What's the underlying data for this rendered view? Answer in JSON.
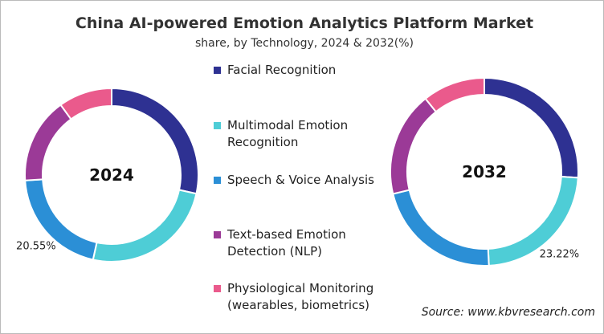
{
  "header": {
    "title": "China AI-powered Emotion Analytics Platform Market",
    "subtitle": "share, by Technology, 2024 & 2032(%)",
    "source": "Source: www.kbvresearch.com"
  },
  "chart_data": [
    {
      "type": "donut",
      "title": "2024",
      "categories": [
        "Facial Recognition",
        "Multimodal Emotion Recognition",
        "Speech & Voice Analysis",
        "Text-based Emotion Detection (NLP)",
        "Physiological Monitoring (wearables, biometrics)"
      ],
      "colors": [
        "#2e3192",
        "#4ecdd6",
        "#2b8fd6",
        "#9b3a97",
        "#ea5a8c"
      ],
      "values": [
        28.45,
        25,
        20.55,
        16,
        10
      ],
      "value_labels": [
        null,
        null,
        "20.55%",
        null,
        null
      ]
    },
    {
      "type": "donut",
      "title": "2032",
      "categories": [
        "Facial Recognition",
        "Multimodal Emotion Recognition",
        "Speech & Voice Analysis",
        "Text-based Emotion Detection (NLP)",
        "Physiological Monitoring (wearables, biometrics)"
      ],
      "colors": [
        "#2e3192",
        "#4ecdd6",
        "#2b8fd6",
        "#9b3a97",
        "#ea5a8c"
      ],
      "values": [
        26,
        23.22,
        22,
        18,
        10.78
      ],
      "value_labels": [
        null,
        "23.22%",
        null,
        null,
        null
      ]
    }
  ]
}
